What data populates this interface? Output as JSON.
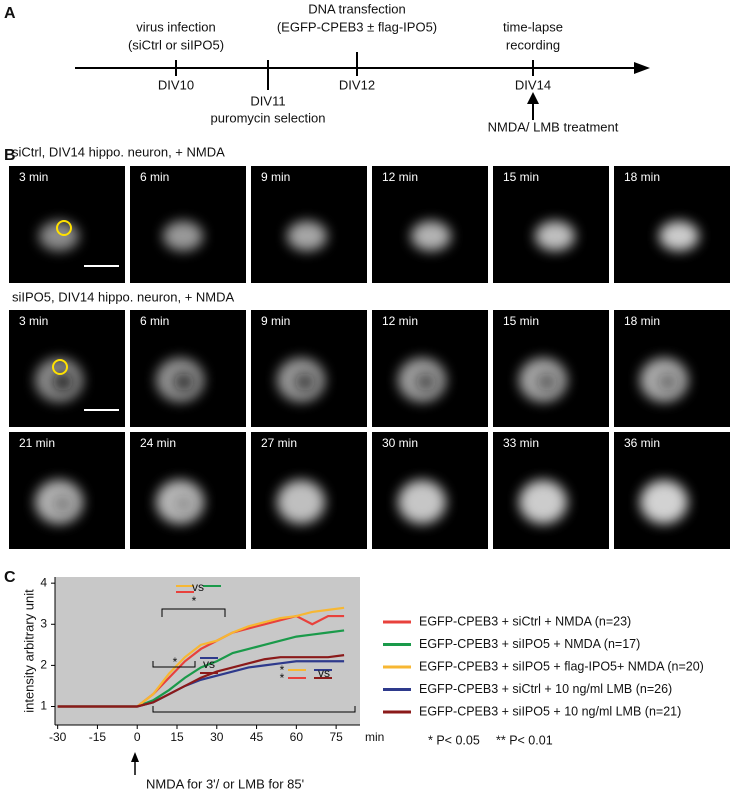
{
  "panels": {
    "a": "A",
    "b": "B",
    "c": "C"
  },
  "timeline": {
    "virus": "virus infection",
    "virus_detail": "(siCtrl or siIPO5)",
    "div10": "DIV10",
    "div11": "DIV11",
    "puromycin": "puromycin selection",
    "dna": "DNA transfection",
    "dna_detail": "(EGFP-CPEB3 ± flag-IPO5)",
    "div12": "DIV12",
    "timelapse": "time-lapse",
    "recording": "recording",
    "div14": "DIV14",
    "treatment": "NMDA/ LMB treatment"
  },
  "imaging": {
    "conditions": [
      {
        "title": "siCtrl,  DIV14 hippo. neuron, + NMDA",
        "frames": [
          "3 min",
          "6 min",
          "9 min",
          "12 min",
          "15 min",
          "18 min"
        ]
      },
      {
        "title": "siIPO5, DIV14 hippo. neuron, + NMDA",
        "frames": [
          "3 min",
          "6 min",
          "9 min",
          "12 min",
          "15 min",
          "18 min",
          "21 min",
          "24 min",
          "27 min",
          "30 min",
          "33 min",
          "36 min"
        ]
      }
    ]
  },
  "chart_data": {
    "type": "line",
    "ylabel": "intensity arbitrary unit",
    "xunit": "min",
    "note": "NMDA for 3'/ or LMB for 85'",
    "x": [
      -30,
      -24,
      -18,
      -12,
      -6,
      0,
      6,
      12,
      18,
      24,
      30,
      36,
      42,
      48,
      54,
      60,
      66,
      72,
      78
    ],
    "series": [
      {
        "name": "EGFP-CPEB3 + siCtrl + NMDA (n=23)",
        "color": "#e8413c",
        "values": [
          1,
          1,
          1,
          1,
          1,
          1,
          1.3,
          1.7,
          2.1,
          2.4,
          2.6,
          2.8,
          2.9,
          3.0,
          3.1,
          3.2,
          3.0,
          3.2,
          3.2
        ]
      },
      {
        "name": "EGFP-CPEB3 + siIPO5 + NMDA (n=17)",
        "color": "#1a9a4a",
        "values": [
          1,
          1,
          1,
          1,
          1,
          1,
          1.15,
          1.4,
          1.7,
          1.95,
          2.1,
          2.3,
          2.4,
          2.5,
          2.6,
          2.7,
          2.75,
          2.8,
          2.85
        ]
      },
      {
        "name": "EGFP-CPEB3 + siIPO5 + flag-IPO5+ NMDA (n=20)",
        "color": "#f7b733",
        "values": [
          1,
          1,
          1,
          1,
          1,
          1,
          1.3,
          1.8,
          2.2,
          2.5,
          2.6,
          2.8,
          2.95,
          3.05,
          3.15,
          3.2,
          3.3,
          3.35,
          3.4
        ]
      },
      {
        "name": "EGFP-CPEB3 + siCtrl + 10 ng/ml LMB (n=26)",
        "color": "#2e3a8c",
        "values": [
          1,
          1,
          1,
          1,
          1,
          1,
          1.1,
          1.3,
          1.5,
          1.65,
          1.75,
          1.85,
          1.95,
          2.0,
          2.05,
          2.1,
          2.1,
          2.1,
          2.1
        ]
      },
      {
        "name": "EGFP-CPEB3 + siIPO5 + 10 ng/ml LMB (n=21)",
        "color": "#8b1a1a",
        "values": [
          1,
          1,
          1,
          1,
          1,
          1,
          1.1,
          1.3,
          1.5,
          1.7,
          1.85,
          1.95,
          2.05,
          2.15,
          2.2,
          2.2,
          2.2,
          2.2,
          2.25
        ]
      }
    ],
    "xlim": [
      -31,
      84
    ],
    "ylim": [
      0.55,
      4.15
    ],
    "xticks": [
      -30,
      -15,
      0,
      15,
      30,
      45,
      60,
      75
    ],
    "yticks": [
      1,
      2,
      3,
      4
    ],
    "background": "#c8c8c8",
    "annotations": [
      "vs",
      "*",
      "*",
      "vs",
      "*",
      "*",
      "vs"
    ],
    "significance": [
      "* P< 0.05",
      "** P< 0.01"
    ]
  }
}
